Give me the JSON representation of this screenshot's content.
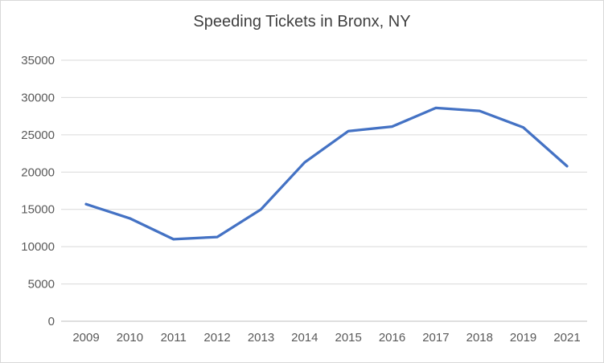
{
  "chart_data": {
    "type": "line",
    "title": "Speeding Tickets in Bronx, NY",
    "categories": [
      "2009",
      "2010",
      "2011",
      "2012",
      "2013",
      "2014",
      "2015",
      "2016",
      "2017",
      "2018",
      "2019",
      "2021"
    ],
    "values": [
      15700,
      13800,
      11000,
      11300,
      15000,
      21300,
      25500,
      26100,
      28600,
      28200,
      26000,
      20800
    ],
    "xlabel": "",
    "ylabel": "",
    "ylim": [
      0,
      35000
    ],
    "ytick_interval": 5000,
    "grid": true,
    "legend": "none",
    "line_color": "#4472C4"
  },
  "colors": {
    "line": "#4472C4",
    "gridline": "#D9D9D9",
    "axis_line": "#BFBFBF",
    "tick_label": "#595959",
    "title": "#404040",
    "border": "#D9D9D9",
    "background": "#FFFFFF"
  }
}
